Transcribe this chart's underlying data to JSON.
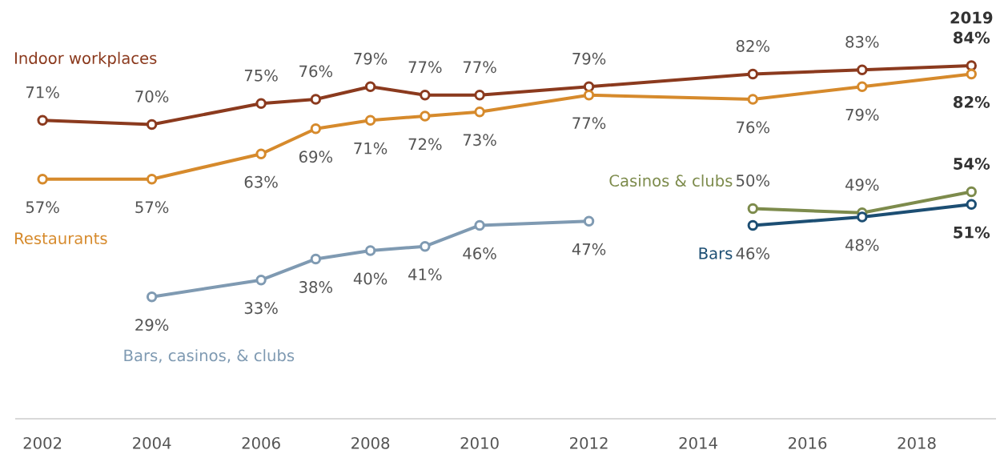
{
  "chart_data": {
    "type": "line",
    "marker": "circle",
    "tick_labels": "x",
    "xlim": [
      2001.5,
      2019.45
    ],
    "xticks": [
      2002,
      2004,
      2006,
      2008,
      2010,
      2012,
      2014,
      2016,
      2018
    ],
    "annotations": [
      "2019"
    ],
    "series": [
      {
        "name": "Indoor workplaces",
        "color": "#8b3a1e",
        "x": [
          2002,
          2004,
          2006,
          2007,
          2008,
          2009,
          2010,
          2012,
          2015,
          2017,
          2019
        ],
        "values": [
          71,
          70,
          75,
          76,
          79,
          77,
          77,
          79,
          82,
          83,
          84
        ],
        "value_labels": [
          "71%",
          "70%",
          "75%",
          "76%",
          "79%",
          "77%",
          "77%",
          "79%",
          "82%",
          "83%",
          "84%"
        ]
      },
      {
        "name": "Restaurants",
        "color": "#d68a2c",
        "x": [
          2002,
          2004,
          2006,
          2007,
          2008,
          2009,
          2010,
          2012,
          2015,
          2017,
          2019
        ],
        "values": [
          57,
          57,
          63,
          69,
          71,
          72,
          73,
          77,
          76,
          79,
          82
        ],
        "value_labels": [
          "57%",
          "57%",
          "63%",
          "69%",
          "71%",
          "72%",
          "73%",
          "77%",
          "76%",
          "79%",
          "82%"
        ]
      },
      {
        "name": "Bars, casinos, & clubs",
        "color": "#7f9ab2",
        "x": [
          2004,
          2006,
          2007,
          2008,
          2009,
          2010,
          2012
        ],
        "values": [
          29,
          33,
          38,
          40,
          41,
          46,
          47
        ],
        "value_labels": [
          "29%",
          "33%",
          "38%",
          "40%",
          "41%",
          "46%",
          "47%"
        ]
      },
      {
        "name": "Casinos & clubs",
        "color": "#7d8b4c",
        "x": [
          2015,
          2017,
          2019
        ],
        "values": [
          50,
          49,
          54
        ],
        "value_labels": [
          "50%",
          "49%",
          "54%"
        ]
      },
      {
        "name": "Bars",
        "color": "#1c4e73",
        "x": [
          2015,
          2017,
          2019
        ],
        "values": [
          46,
          48,
          51
        ],
        "value_labels": [
          "46%",
          "48%",
          "51%"
        ]
      }
    ]
  }
}
